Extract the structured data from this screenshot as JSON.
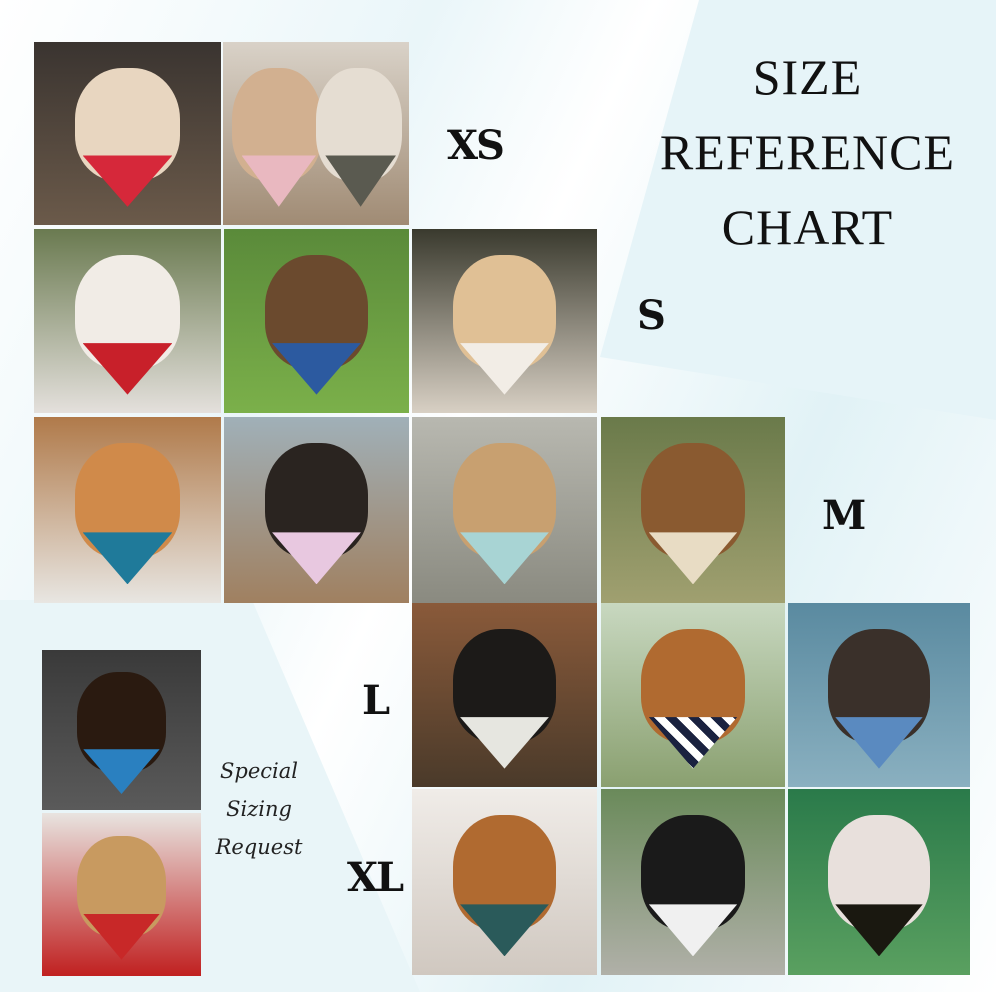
{
  "title": {
    "line1": "SIZE",
    "line2": "REFERENCE",
    "line3": "CHART"
  },
  "sizes": {
    "xs": "XS",
    "s": "S",
    "m": "M",
    "l": "L",
    "xl": "XL"
  },
  "special": {
    "line1": "Special",
    "line2": "Sizing",
    "line3": "Request"
  },
  "colors": {
    "background": "#ffffff",
    "accent_wash": "#e3f3f7",
    "text": "#111111"
  }
}
